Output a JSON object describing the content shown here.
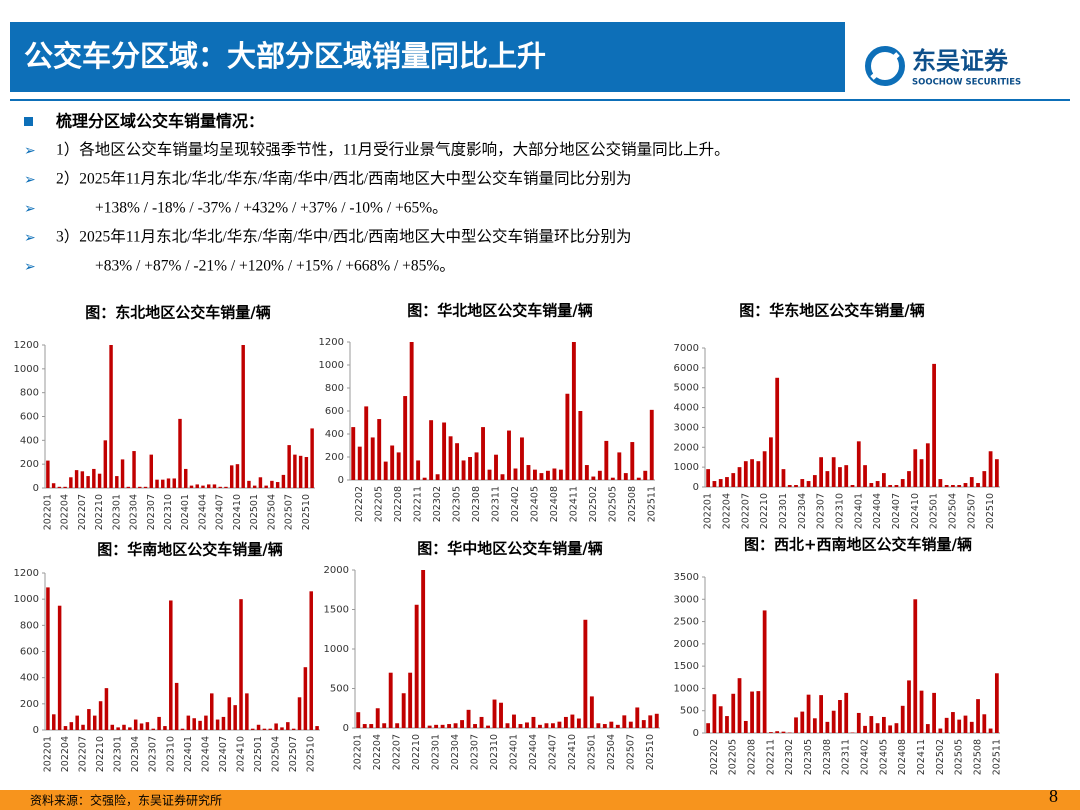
{
  "header": {
    "title": "公交车分区域：大部分区域销量同比上升",
    "logo": "东吴证券",
    "logo_en": "SOOCHOW SECURITIES"
  },
  "bullets": {
    "heading": "梳理分区域公交车销量情况：",
    "lines": [
      "1）各地区公交车销量均呈现较强季节性，11月受行业景气度影响，大部分地区公交销量同比上升。",
      "2）2025年11月东北/华北/华东/华南/华中/西北/西南地区大中型公交车销量同比分别为",
      "+138% / -18% / -37% / +432% / +37% / -10% / +65%。",
      "3）2025年11月东北/华北/华东/华南/华中/西北/西南地区大中型公交车销量环比分别为",
      "+83% / +87% / -21% / +120% / +15% / +668% / +85%。"
    ]
  },
  "source": "资料来源：交强险，东吴证券研究所",
  "page": "8",
  "chart_data": [
    {
      "type": "bar",
      "title": "图：东北地区公交车销量/辆",
      "color": "#c00000",
      "ylim": [
        0,
        1200
      ],
      "yticks": [
        0,
        200,
        400,
        600,
        800,
        1000,
        1200
      ],
      "categories": [
        "202201",
        null,
        null,
        "202204",
        null,
        null,
        "202207",
        null,
        null,
        "202210",
        null,
        null,
        "202301",
        null,
        null,
        "202304",
        null,
        null,
        "202307",
        null,
        null,
        "202310",
        null,
        null,
        "202401",
        null,
        null,
        "202404",
        null,
        null,
        "202407",
        null,
        null,
        "202410",
        null,
        null,
        "202501",
        null,
        null,
        "202504",
        null,
        null,
        "202507",
        null,
        null,
        "202510",
        null
      ],
      "values": [
        230,
        40,
        10,
        10,
        90,
        150,
        140,
        100,
        160,
        120,
        400,
        1200,
        100,
        240,
        10,
        310,
        10,
        10,
        280,
        70,
        70,
        80,
        80,
        580,
        160,
        20,
        30,
        20,
        30,
        30,
        10,
        10,
        190,
        200,
        1200,
        60,
        20,
        90,
        20,
        60,
        50,
        110,
        360,
        280,
        270,
        260,
        500
      ]
    },
    {
      "type": "bar",
      "title": "图：华北地区公交车销量/辆",
      "color": "#c00000",
      "ylim": [
        0,
        1200
      ],
      "yticks": [
        0,
        200,
        400,
        600,
        800,
        1000,
        1200
      ],
      "categories": [
        null,
        "202202",
        null,
        null,
        "202205",
        null,
        null,
        "202208",
        null,
        null,
        "202211",
        null,
        null,
        "202302",
        null,
        null,
        "202305",
        null,
        null,
        "202308",
        null,
        null,
        "202311",
        null,
        null,
        "202402",
        null,
        null,
        "202405",
        null,
        null,
        "202408",
        null,
        null,
        "202411",
        null,
        null,
        "202502",
        null,
        null,
        "202505",
        null,
        null,
        "202508",
        null,
        null,
        "202511"
      ],
      "values": [
        460,
        290,
        640,
        370,
        530,
        160,
        300,
        240,
        730,
        1200,
        170,
        20,
        520,
        50,
        500,
        380,
        320,
        170,
        200,
        240,
        460,
        90,
        220,
        50,
        430,
        100,
        370,
        130,
        90,
        60,
        80,
        100,
        90,
        750,
        1200,
        600,
        130,
        30,
        80,
        340,
        20,
        240,
        60,
        330,
        20,
        80,
        610
      ]
    },
    {
      "type": "bar",
      "title": "图：华东地区公交车销量/辆",
      "color": "#c00000",
      "ylim": [
        0,
        7000
      ],
      "yticks": [
        0,
        1000,
        2000,
        3000,
        4000,
        5000,
        6000,
        7000
      ],
      "categories": [
        "202201",
        null,
        null,
        "202204",
        null,
        null,
        "202207",
        null,
        null,
        "202210",
        null,
        null,
        "202301",
        null,
        null,
        "202304",
        null,
        null,
        "202307",
        null,
        null,
        "202310",
        null,
        null,
        "202401",
        null,
        null,
        "202404",
        null,
        null,
        "202407",
        null,
        null,
        "202410",
        null,
        null,
        "202501",
        null,
        null,
        "202504",
        null,
        null,
        "202507",
        null,
        null,
        "202510",
        null
      ],
      "values": [
        900,
        300,
        400,
        500,
        700,
        1000,
        1300,
        1400,
        1300,
        1800,
        2500,
        5500,
        900,
        100,
        100,
        400,
        300,
        600,
        1500,
        800,
        1500,
        1000,
        1100,
        100,
        2300,
        1100,
        200,
        300,
        700,
        100,
        100,
        400,
        800,
        1900,
        1400,
        2200,
        6200,
        400,
        100,
        100,
        100,
        200,
        500,
        200,
        800,
        1800,
        1400
      ]
    },
    {
      "type": "bar",
      "title": "图：华南地区公交车销量/辆",
      "color": "#c00000",
      "ylim": [
        0,
        1200
      ],
      "yticks": [
        0,
        200,
        400,
        600,
        800,
        1000,
        1200
      ],
      "categories": [
        "202201",
        null,
        null,
        "202204",
        null,
        null,
        "202207",
        null,
        null,
        "202210",
        null,
        null,
        "202301",
        null,
        null,
        "202304",
        null,
        null,
        "202307",
        null,
        null,
        "202310",
        null,
        null,
        "202401",
        null,
        null,
        "202404",
        null,
        null,
        "202407",
        null,
        null,
        "202410",
        null,
        null,
        "202501",
        null,
        null,
        "202504",
        null,
        null,
        "202507",
        null,
        null,
        "202510",
        null
      ],
      "values": [
        1090,
        120,
        950,
        30,
        60,
        110,
        40,
        160,
        110,
        220,
        320,
        40,
        20,
        40,
        20,
        80,
        50,
        60,
        10,
        100,
        30,
        990,
        360,
        10,
        110,
        90,
        70,
        110,
        280,
        80,
        100,
        250,
        190,
        1000,
        280,
        10,
        40,
        10,
        10,
        50,
        20,
        60,
        10,
        250,
        480,
        1060,
        30
      ]
    },
    {
      "type": "bar",
      "title": "图：华中地区公交车销量/辆",
      "color": "#c00000",
      "ylim": [
        0,
        2000
      ],
      "yticks": [
        0,
        500,
        1000,
        1500,
        2000
      ],
      "categories": [
        "202201",
        null,
        null,
        "202204",
        null,
        null,
        "202207",
        null,
        null,
        "202210",
        null,
        null,
        "202301",
        null,
        null,
        "202304",
        null,
        null,
        "202307",
        null,
        null,
        "202310",
        null,
        null,
        "202401",
        null,
        null,
        "202404",
        null,
        null,
        "202407",
        null,
        null,
        "202410",
        null,
        null,
        "202501",
        null,
        null,
        "202504",
        null,
        null,
        "202507",
        null,
        null,
        "202510",
        null
      ],
      "values": [
        200,
        50,
        50,
        250,
        60,
        700,
        60,
        440,
        700,
        1560,
        2000,
        30,
        40,
        40,
        50,
        60,
        100,
        230,
        50,
        140,
        30,
        360,
        320,
        60,
        170,
        50,
        70,
        140,
        40,
        60,
        60,
        80,
        140,
        170,
        120,
        1370,
        400,
        60,
        50,
        80,
        40,
        160,
        80,
        260,
        100,
        160,
        180
      ]
    },
    {
      "type": "bar",
      "title": "图：西北+西南地区公交车销量/辆",
      "color": "#c00000",
      "ylim": [
        0,
        3500
      ],
      "yticks": [
        0,
        500,
        1000,
        1500,
        2000,
        2500,
        3000,
        3500
      ],
      "categories": [
        null,
        "202202",
        null,
        null,
        "202205",
        null,
        null,
        "202208",
        null,
        null,
        "202211",
        null,
        null,
        "202302",
        null,
        null,
        "202305",
        null,
        null,
        "202308",
        null,
        null,
        "202311",
        null,
        null,
        "202402",
        null,
        null,
        "202405",
        null,
        null,
        "202408",
        null,
        null,
        "202411",
        null,
        null,
        "202502",
        null,
        null,
        "202505",
        null,
        null,
        "202508",
        null,
        null,
        "202511"
      ],
      "values": [
        220,
        870,
        600,
        380,
        880,
        1230,
        270,
        930,
        940,
        2750,
        20,
        40,
        30,
        10,
        350,
        480,
        860,
        330,
        850,
        250,
        500,
        740,
        900,
        10,
        450,
        160,
        380,
        220,
        360,
        170,
        220,
        610,
        1180,
        3000,
        950,
        200,
        900,
        100,
        340,
        470,
        300,
        390,
        250,
        760,
        420,
        100,
        1340
      ]
    }
  ]
}
